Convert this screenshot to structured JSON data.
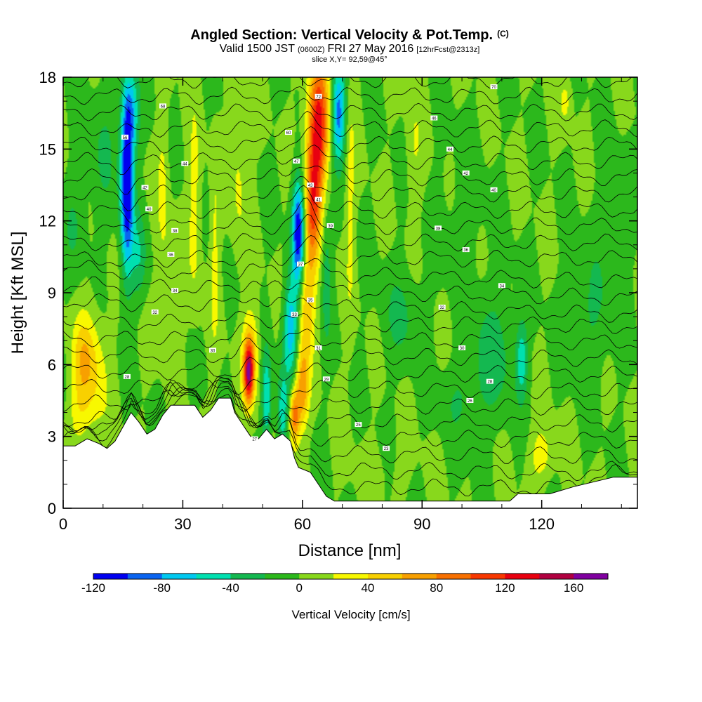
{
  "chart_data": {
    "type": "heatmap",
    "title": "Angled Section: Vertical Velocity & Pot.Temp.",
    "title_tag": "(C)",
    "subtitle_valid": "Valid 1500 JST",
    "subtitle_utc": "(0600Z)",
    "subtitle_date": "FRI 27 May 2016",
    "subtitle_fcst": "[12hrFcst@2313z]",
    "slice_label": "slice X,Y= 92,59@45°",
    "xlabel": "Distance [nm]",
    "ylabel": "Height [Kft MSL]",
    "xlim": [
      0,
      144
    ],
    "ylim": [
      0,
      18
    ],
    "x_ticks": [
      "0",
      "30",
      "60",
      "90",
      "120"
    ],
    "y_ticks": [
      "0",
      "3",
      "6",
      "9",
      "12",
      "15",
      "18"
    ],
    "colorbar": {
      "label": "Vertical Velocity [cm/s]",
      "tick_labels": [
        "-120",
        "-80",
        "-40",
        "0",
        "40",
        "80",
        "120",
        "160"
      ],
      "levels": [
        -120,
        -100,
        -80,
        -60,
        -40,
        -20,
        0,
        20,
        40,
        60,
        80,
        100,
        120,
        140,
        160,
        180
      ],
      "colors": [
        "#0000f0",
        "#0a64f0",
        "#00c8f0",
        "#00e0b0",
        "#14b850",
        "#2cb81c",
        "#88d81c",
        "#f8f800",
        "#f8d000",
        "#f8a000",
        "#f87000",
        "#f83800",
        "#e80010",
        "#b00040",
        "#8000a0"
      ]
    },
    "terrain_kft": [
      [
        0,
        2.6
      ],
      [
        3,
        2.6
      ],
      [
        6,
        2.9
      ],
      [
        9,
        2.7
      ],
      [
        11,
        2.5
      ],
      [
        13,
        2.8
      ],
      [
        15,
        3.4
      ],
      [
        17,
        4.0
      ],
      [
        19,
        3.6
      ],
      [
        21,
        3.1
      ],
      [
        23,
        3.3
      ],
      [
        25,
        3.9
      ],
      [
        27,
        4.3
      ],
      [
        33,
        4.3
      ],
      [
        35,
        3.8
      ],
      [
        37,
        4.1
      ],
      [
        39,
        4.6
      ],
      [
        42,
        4.6
      ],
      [
        43,
        4.0
      ],
      [
        45,
        3.5
      ],
      [
        47,
        3.0
      ],
      [
        49,
        2.9
      ],
      [
        51,
        3.3
      ],
      [
        53,
        2.9
      ],
      [
        55,
        3.1
      ],
      [
        57,
        2.8
      ],
      [
        58,
        2.1
      ],
      [
        59,
        1.7
      ],
      [
        62,
        1.5
      ],
      [
        64,
        1.0
      ],
      [
        66,
        0.5
      ],
      [
        68,
        0.3
      ],
      [
        112,
        0.3
      ],
      [
        114,
        0.6
      ],
      [
        122,
        0.6
      ],
      [
        128,
        0.9
      ],
      [
        138,
        1.3
      ],
      [
        144,
        1.3
      ]
    ],
    "vertical_velocity_cells": [
      {
        "x": 16,
        "y": 13.5,
        "sx": 1.6,
        "sy": 3.5,
        "w": -130
      },
      {
        "x": 17,
        "y": 16.5,
        "sx": 2.0,
        "sy": 1.8,
        "w": -60
      },
      {
        "x": 19,
        "y": 10.5,
        "sx": 2.0,
        "sy": 1.8,
        "w": -35
      },
      {
        "x": 59,
        "y": 11.5,
        "sx": 1.6,
        "sy": 2.2,
        "w": -120
      },
      {
        "x": 57,
        "y": 7.5,
        "sx": 1.8,
        "sy": 2.0,
        "w": -75
      },
      {
        "x": 55,
        "y": 4.0,
        "sx": 1.4,
        "sy": 1.8,
        "w": -50
      },
      {
        "x": 51,
        "y": 4.5,
        "sx": 1.2,
        "sy": 2.0,
        "w": -60
      },
      {
        "x": 69,
        "y": 16.5,
        "sx": 1.8,
        "sy": 2.0,
        "w": -90
      },
      {
        "x": 66,
        "y": 10.0,
        "sx": 1.2,
        "sy": 3.0,
        "w": -30
      },
      {
        "x": 64,
        "y": 16.0,
        "sx": 2.6,
        "sy": 2.8,
        "w": 130
      },
      {
        "x": 62.5,
        "y": 12.5,
        "sx": 2.0,
        "sy": 2.6,
        "w": 90
      },
      {
        "x": 61,
        "y": 8.5,
        "sx": 2.0,
        "sy": 2.4,
        "w": 55
      },
      {
        "x": 60,
        "y": 5.0,
        "sx": 1.6,
        "sy": 1.6,
        "w": 70
      },
      {
        "x": 58,
        "y": 3.8,
        "sx": 1.3,
        "sy": 1.2,
        "w": 90
      },
      {
        "x": 46.5,
        "y": 5.6,
        "sx": 1.2,
        "sy": 1.2,
        "w": 120
      },
      {
        "x": 47,
        "y": 6.4,
        "sx": 2.0,
        "sy": 1.8,
        "w": 60
      },
      {
        "x": 5,
        "y": 6.3,
        "sx": 2.8,
        "sy": 1.8,
        "w": 45
      },
      {
        "x": 8,
        "y": 5.5,
        "sx": 3.2,
        "sy": 2.5,
        "w": 32
      },
      {
        "x": 4,
        "y": 4.0,
        "sx": 3.0,
        "sy": 1.5,
        "w": 25
      },
      {
        "x": 27,
        "y": 9.0,
        "sx": 3.0,
        "sy": 2.6,
        "w": 22
      },
      {
        "x": 33,
        "y": 12.5,
        "sx": 1.6,
        "sy": 4.0,
        "w": 30
      },
      {
        "x": 25,
        "y": 13.5,
        "sx": 1.4,
        "sy": 3.0,
        "w": 25
      },
      {
        "x": 38,
        "y": 10.5,
        "sx": 1.2,
        "sy": 4.0,
        "w": 25
      },
      {
        "x": 44,
        "y": 14.0,
        "sx": 2.0,
        "sy": 3.5,
        "w": 25
      },
      {
        "x": 72,
        "y": 13.0,
        "sx": 1.2,
        "sy": 5.0,
        "w": 25
      },
      {
        "x": 88,
        "y": 15.0,
        "sx": 2.0,
        "sy": 2.5,
        "w": 18
      },
      {
        "x": 120,
        "y": 2.2,
        "sx": 3.0,
        "sy": 1.2,
        "w": 32
      },
      {
        "x": 126,
        "y": 17.0,
        "sx": 1.5,
        "sy": 1.0,
        "w": 25
      },
      {
        "x": 108,
        "y": 6.5,
        "sx": 6.0,
        "sy": 2.5,
        "w": -28
      },
      {
        "x": 115,
        "y": 6.2,
        "sx": 1.4,
        "sy": 1.5,
        "w": -50
      },
      {
        "x": 132,
        "y": 8.0,
        "sx": 6.0,
        "sy": 2.6,
        "w": -20
      },
      {
        "x": 10,
        "y": 15.0,
        "sx": 4.0,
        "sy": 3.0,
        "w": -18
      },
      {
        "x": 3,
        "y": 12.0,
        "sx": 3.0,
        "sy": 2.0,
        "w": -18
      },
      {
        "x": 100,
        "y": 12.0,
        "sx": 6.0,
        "sy": 3.0,
        "w": -10
      },
      {
        "x": 85,
        "y": 8.0,
        "sx": 5.0,
        "sy": 2.0,
        "w": -22
      },
      {
        "x": 100,
        "y": 4.5,
        "sx": 6.0,
        "sy": 1.5,
        "w": -18
      },
      {
        "x": 138,
        "y": 12.0,
        "sx": 4.0,
        "sy": 3.0,
        "w": -12
      },
      {
        "x": 80,
        "y": 1.5,
        "sx": 8.0,
        "sy": 1.2,
        "w": 6
      }
    ],
    "theta_contour_levels": 26,
    "theta_labels": [
      {
        "x": 25,
        "y": 16.8,
        "text": "68"
      },
      {
        "x": 15.5,
        "y": 15.5,
        "text": "56"
      },
      {
        "x": 30.5,
        "y": 14.4,
        "text": "44"
      },
      {
        "x": 20.5,
        "y": 13.4,
        "text": "42"
      },
      {
        "x": 21.5,
        "y": 12.5,
        "text": "40"
      },
      {
        "x": 28,
        "y": 11.6,
        "text": "38"
      },
      {
        "x": 27,
        "y": 10.6,
        "text": "36"
      },
      {
        "x": 28,
        "y": 9.1,
        "text": "34"
      },
      {
        "x": 23,
        "y": 8.2,
        "text": "32"
      },
      {
        "x": 37.5,
        "y": 6.6,
        "text": "30"
      },
      {
        "x": 16,
        "y": 5.5,
        "text": "28"
      },
      {
        "x": 64,
        "y": 17.2,
        "text": "72"
      },
      {
        "x": 56.5,
        "y": 15.7,
        "text": "60"
      },
      {
        "x": 58.5,
        "y": 14.5,
        "text": "47"
      },
      {
        "x": 62,
        "y": 13.5,
        "text": "43"
      },
      {
        "x": 64,
        "y": 12.9,
        "text": "41"
      },
      {
        "x": 67,
        "y": 11.8,
        "text": "39"
      },
      {
        "x": 59.5,
        "y": 10.2,
        "text": "37"
      },
      {
        "x": 62,
        "y": 8.7,
        "text": "35"
      },
      {
        "x": 58,
        "y": 8.1,
        "text": "33"
      },
      {
        "x": 64,
        "y": 6.7,
        "text": "31"
      },
      {
        "x": 66,
        "y": 5.4,
        "text": "29"
      },
      {
        "x": 48,
        "y": 2.9,
        "text": "27"
      },
      {
        "x": 74,
        "y": 3.5,
        "text": "25"
      },
      {
        "x": 81,
        "y": 2.5,
        "text": "23"
      },
      {
        "x": 108,
        "y": 17.6,
        "text": "70"
      },
      {
        "x": 93,
        "y": 16.3,
        "text": "46"
      },
      {
        "x": 97,
        "y": 15.0,
        "text": "44"
      },
      {
        "x": 101,
        "y": 14.0,
        "text": "42"
      },
      {
        "x": 108,
        "y": 13.3,
        "text": "40"
      },
      {
        "x": 94,
        "y": 11.7,
        "text": "38"
      },
      {
        "x": 101,
        "y": 10.8,
        "text": "36"
      },
      {
        "x": 110,
        "y": 9.3,
        "text": "34"
      },
      {
        "x": 95,
        "y": 8.4,
        "text": "32"
      },
      {
        "x": 100,
        "y": 6.7,
        "text": "30"
      },
      {
        "x": 107,
        "y": 5.3,
        "text": "28"
      },
      {
        "x": 102,
        "y": 4.5,
        "text": "26"
      }
    ]
  }
}
